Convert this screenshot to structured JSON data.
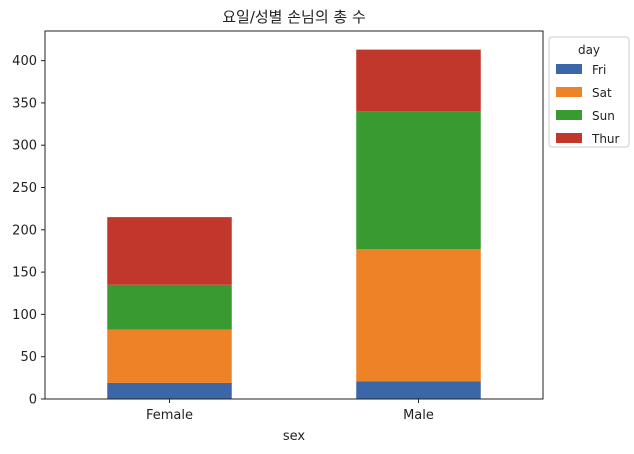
{
  "chart_data": {
    "type": "bar",
    "stacked": true,
    "title": "요일/성별 손님의 총 수",
    "xlabel": "sex",
    "ylabel": "",
    "categories": [
      "Female",
      "Male"
    ],
    "ylim": [
      0,
      435
    ],
    "yticks": [
      0,
      50,
      100,
      150,
      200,
      250,
      300,
      350,
      400
    ],
    "grid": false,
    "legend": {
      "title": "day",
      "placement": "upper-right-outside"
    },
    "series": [
      {
        "name": "Fri",
        "color": "#3b66a8",
        "values": [
          19,
          21
        ]
      },
      {
        "name": "Sat",
        "color": "#ee8227",
        "values": [
          63,
          156
        ]
      },
      {
        "name": "Sun",
        "color": "#3a9a32",
        "values": [
          53,
          163
        ]
      },
      {
        "name": "Thur",
        "color": "#c2372c",
        "values": [
          80,
          73
        ]
      }
    ]
  }
}
